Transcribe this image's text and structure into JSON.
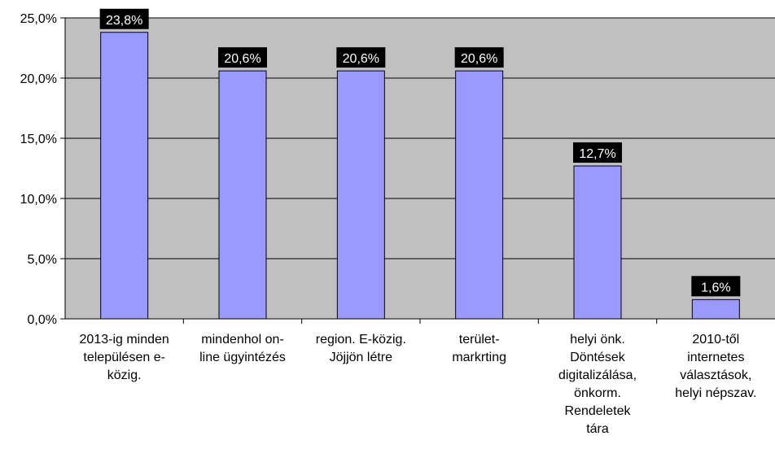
{
  "chart_data": {
    "type": "bar",
    "categories": [
      [
        "2013-ig minden",
        "településen e-",
        "közig."
      ],
      [
        "mindenhol on-",
        "line ügyintézés"
      ],
      [
        "region. E-közig.",
        "Jöjjön létre"
      ],
      [
        "terület-",
        "markrting"
      ],
      [
        "helyi önk.",
        "Döntések",
        "digitalizálása,",
        "önkorm.",
        "Rendeletek",
        "tára"
      ],
      [
        "2010-től",
        "internetes",
        "választások,",
        "helyi népszav."
      ]
    ],
    "values": [
      23.8,
      20.6,
      20.6,
      20.6,
      12.7,
      1.6
    ],
    "data_labels": [
      "23,8%",
      "20,6%",
      "20,6%",
      "20,6%",
      "12,7%",
      "1,6%"
    ],
    "y_ticks": [
      0,
      5,
      10,
      15,
      20,
      25
    ],
    "y_tick_labels": [
      "0,0%",
      "5,0%",
      "10,0%",
      "15,0%",
      "20,0%",
      "25,0%"
    ],
    "ylim": [
      0,
      25
    ],
    "grid": true,
    "colors": {
      "bar_fill": "#9999ff",
      "bar_stroke": "#000000",
      "plot_background": "#c0c0c0",
      "label_background": "#000000",
      "label_text": "#ffffff",
      "gridline": "#000000"
    }
  }
}
